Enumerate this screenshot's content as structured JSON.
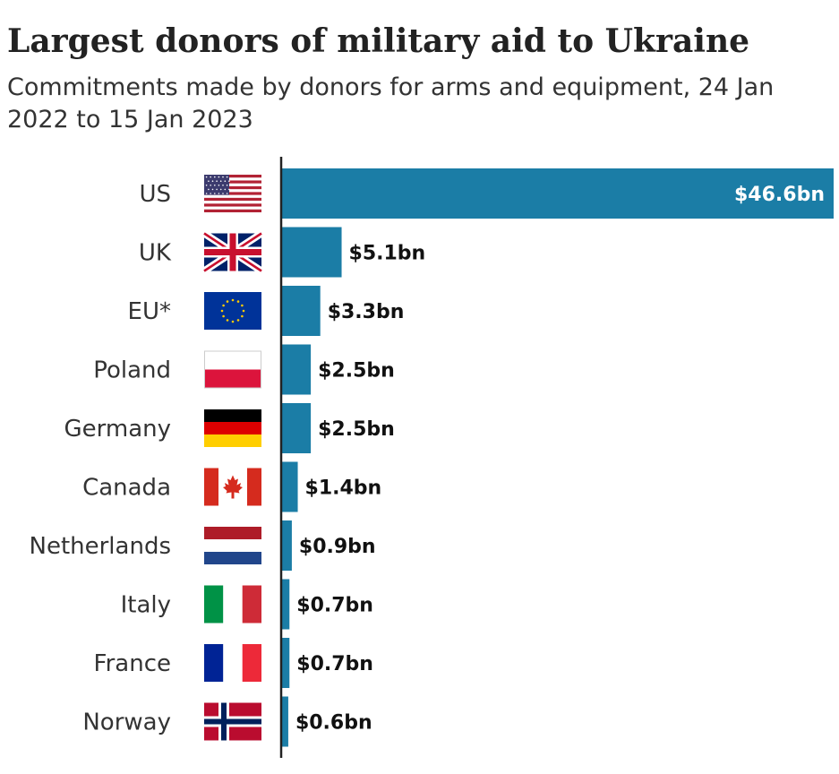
{
  "chart_data": {
    "type": "bar",
    "orientation": "horizontal",
    "title": "Largest donors of military aid to Ukraine",
    "subtitle": "Commitments made by donors for arms and equipment, 24 Jan 2022 to 15 Jan 2023",
    "xlabel": "",
    "ylabel": "",
    "unit": "US$ billion",
    "xlim": [
      0,
      46.6
    ],
    "grid": false,
    "bar_color": "#1b7da6",
    "categories": [
      "US",
      "UK",
      "EU*",
      "Poland",
      "Germany",
      "Canada",
      "Netherlands",
      "Italy",
      "France",
      "Norway"
    ],
    "values": [
      46.6,
      5.1,
      3.3,
      2.5,
      2.5,
      1.4,
      0.9,
      0.7,
      0.7,
      0.6
    ],
    "value_labels": [
      "$46.6bn",
      "$5.1bn",
      "$3.3bn",
      "$2.5bn",
      "$2.5bn",
      "$1.4bn",
      "$0.9bn",
      "$0.7bn",
      "$0.7bn",
      "$0.6bn"
    ],
    "flag_icons": [
      "us-flag-icon",
      "uk-flag-icon",
      "eu-flag-icon",
      "poland-flag-icon",
      "germany-flag-icon",
      "canada-flag-icon",
      "netherlands-flag-icon",
      "italy-flag-icon",
      "france-flag-icon",
      "norway-flag-icon"
    ]
  }
}
